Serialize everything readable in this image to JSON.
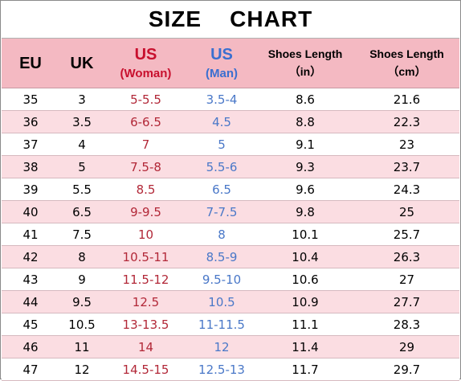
{
  "title": "SIZE    CHART",
  "headers": {
    "eu": "EU",
    "uk": "UK",
    "us_woman": {
      "label": "US",
      "sub": "(Woman)"
    },
    "us_man": {
      "label": "US",
      "sub": "(Man)"
    },
    "length_in": {
      "label": "Shoes Length",
      "sub": "（in）"
    },
    "length_cm": {
      "label": "Shoes Length",
      "sub": "（cm）"
    }
  },
  "colors": {
    "header_bg": "#f4b9c2",
    "alt_row_bg": "#fbdde2",
    "woman": "#b22838",
    "man": "#4a78c8"
  },
  "rows": [
    {
      "eu": "35",
      "uk": "3",
      "woman": "5-5.5",
      "man": "3.5-4",
      "in": "8.6",
      "cm": "21.6"
    },
    {
      "eu": "36",
      "uk": "3.5",
      "woman": "6-6.5",
      "man": "4.5",
      "in": "8.8",
      "cm": "22.3"
    },
    {
      "eu": "37",
      "uk": "4",
      "woman": "7",
      "man": "5",
      "in": "9.1",
      "cm": "23"
    },
    {
      "eu": "38",
      "uk": "5",
      "woman": "7.5-8",
      "man": "5.5-6",
      "in": "9.3",
      "cm": "23.7"
    },
    {
      "eu": "39",
      "uk": "5.5",
      "woman": "8.5",
      "man": "6.5",
      "in": "9.6",
      "cm": "24.3"
    },
    {
      "eu": "40",
      "uk": "6.5",
      "woman": "9-9.5",
      "man": "7-7.5",
      "in": "9.8",
      "cm": "25"
    },
    {
      "eu": "41",
      "uk": "7.5",
      "woman": "10",
      "man": "8",
      "in": "10.1",
      "cm": "25.7"
    },
    {
      "eu": "42",
      "uk": "8",
      "woman": "10.5-11",
      "man": "8.5-9",
      "in": "10.4",
      "cm": "26.3"
    },
    {
      "eu": "43",
      "uk": "9",
      "woman": "11.5-12",
      "man": "9.5-10",
      "in": "10.6",
      "cm": "27"
    },
    {
      "eu": "44",
      "uk": "9.5",
      "woman": "12.5",
      "man": "10.5",
      "in": "10.9",
      "cm": "27.7"
    },
    {
      "eu": "45",
      "uk": "10.5",
      "woman": "13-13.5",
      "man": "11-11.5",
      "in": "11.1",
      "cm": "28.3"
    },
    {
      "eu": "46",
      "uk": "11",
      "woman": "14",
      "man": "12",
      "in": "11.4",
      "cm": "29"
    },
    {
      "eu": "47",
      "uk": "12",
      "woman": "14.5-15",
      "man": "12.5-13",
      "in": "11.7",
      "cm": "29.7"
    }
  ]
}
